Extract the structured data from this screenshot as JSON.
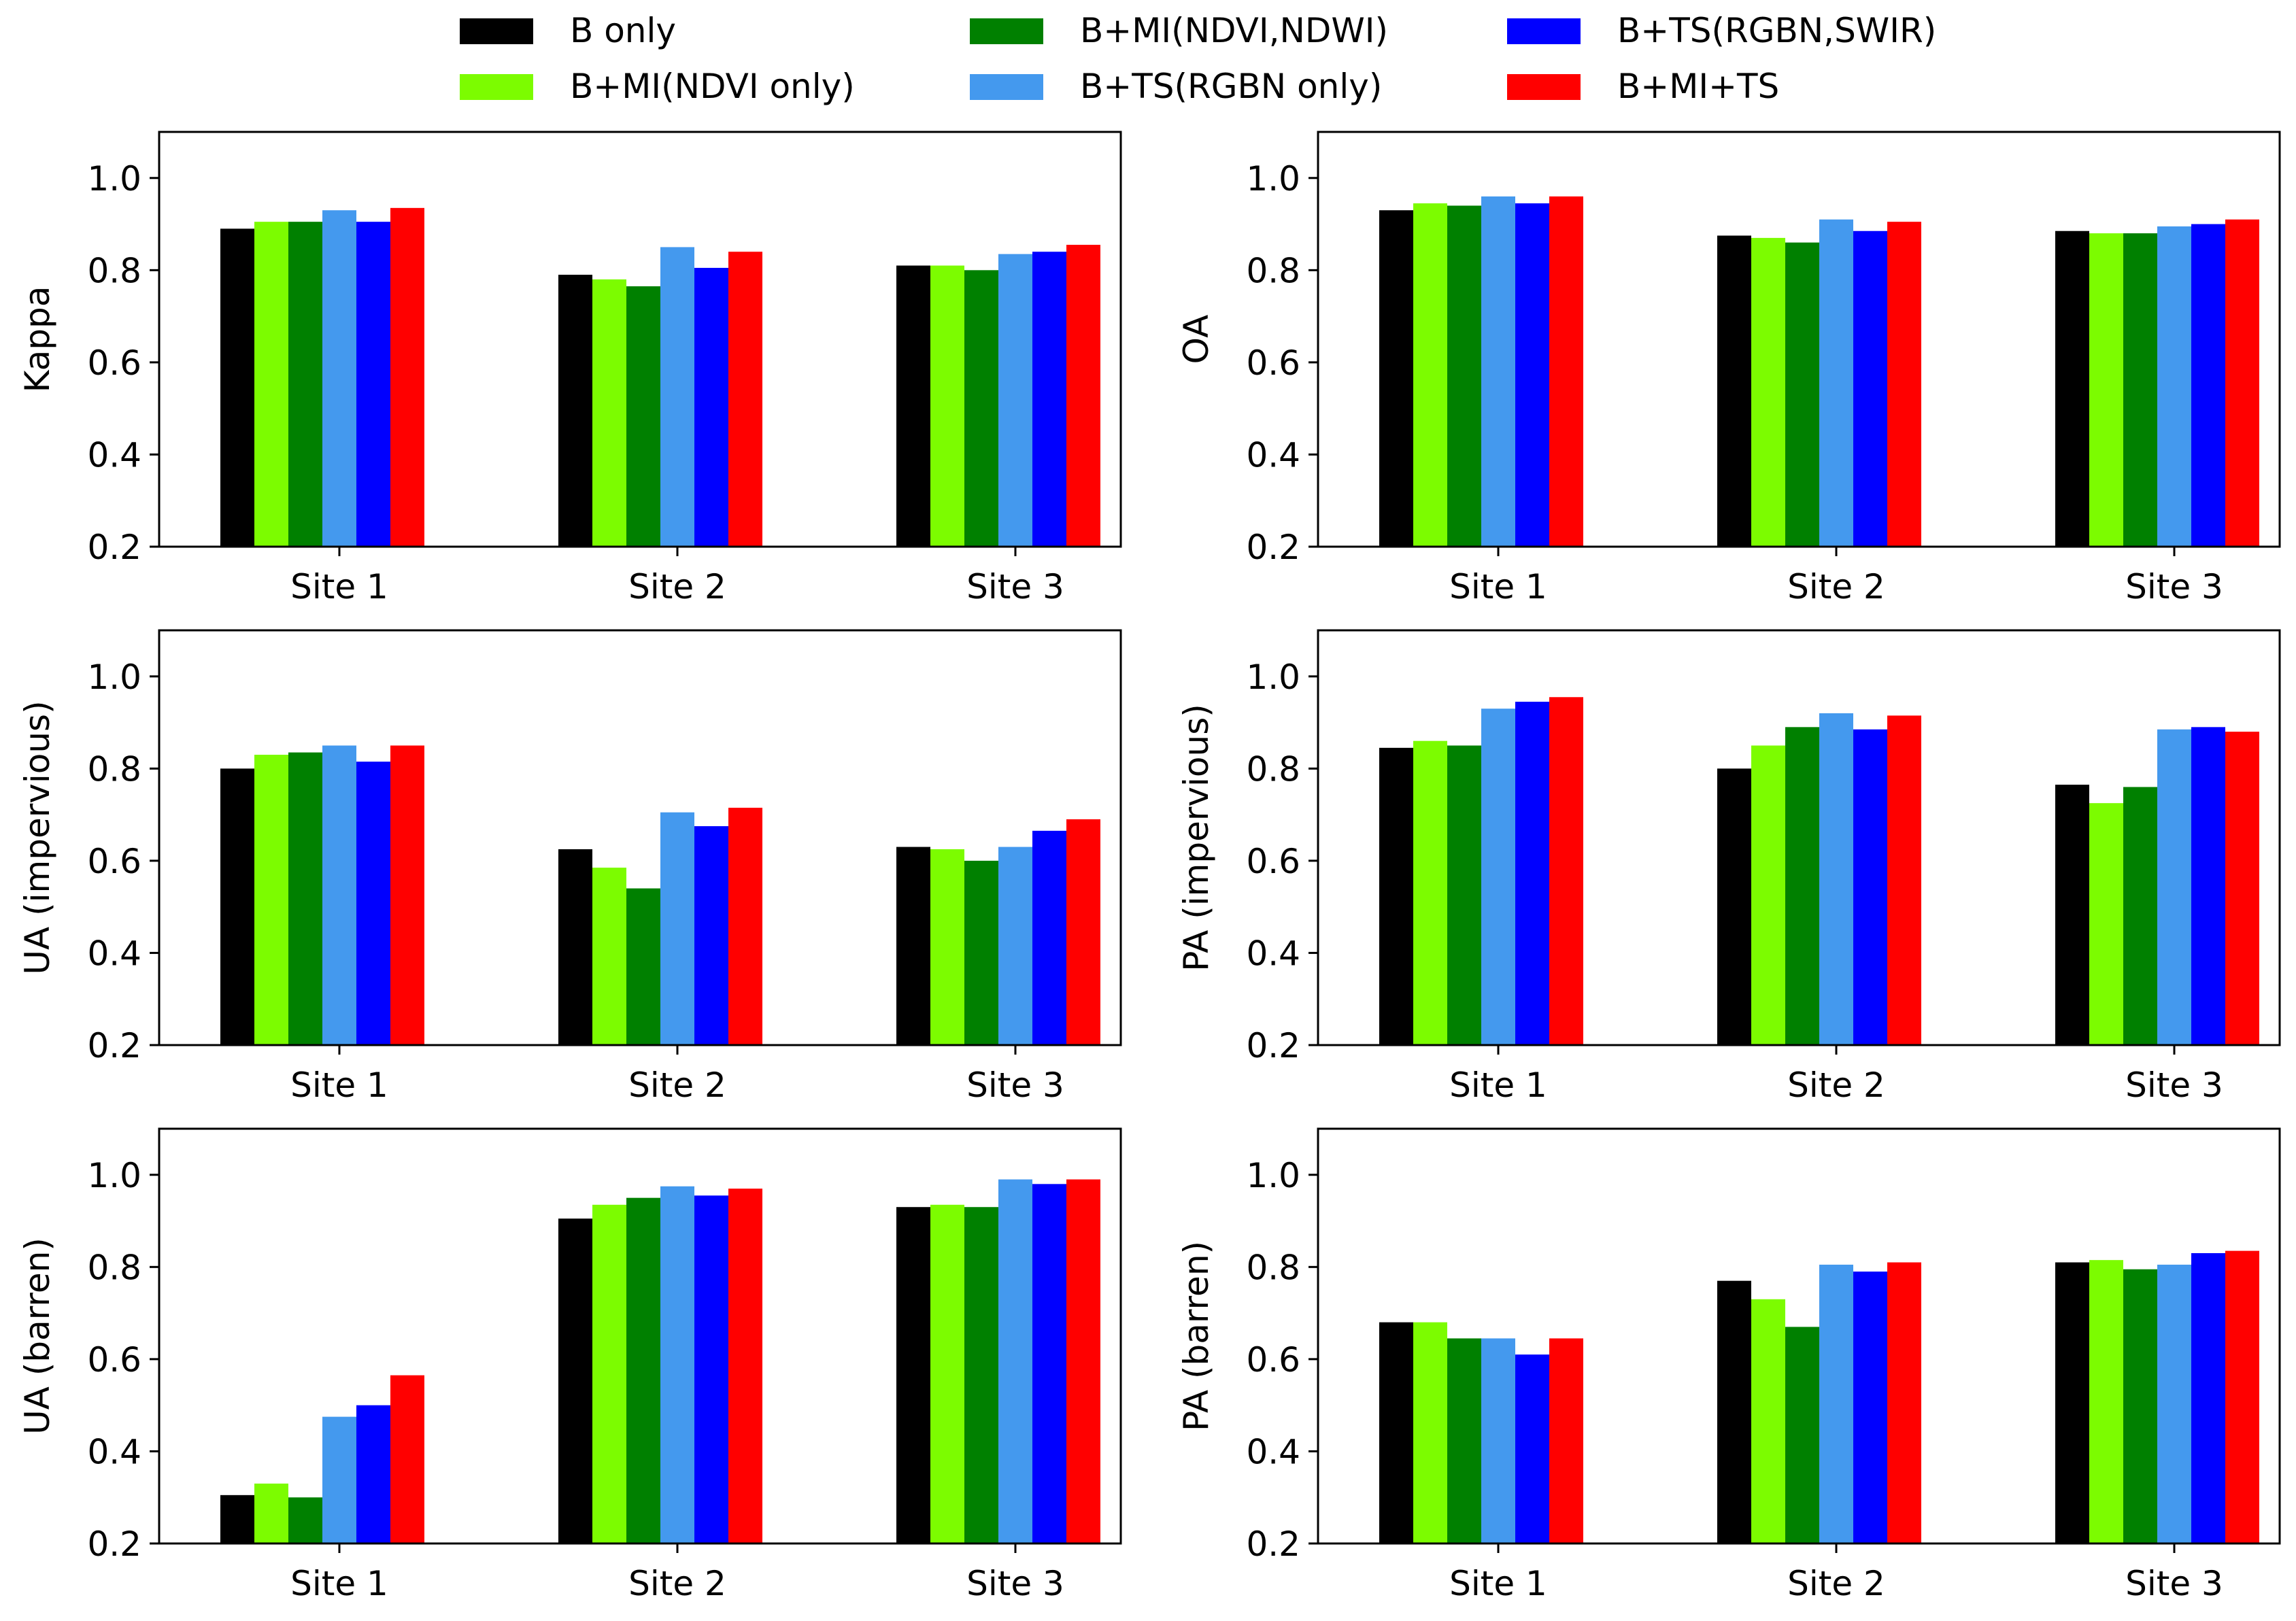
{
  "legend": {
    "placement": "top-center",
    "entries": [
      {
        "label": "B only",
        "color": "#000000"
      },
      {
        "label": "B+MI(NDVI only)",
        "color": "#7CFC00"
      },
      {
        "label": "B+MI(NDVI,NDWI)",
        "color": "#008000"
      },
      {
        "label": "B+TS(RGBN only)",
        "color": "#4499EE"
      },
      {
        "label": "B+TS(RGBN,SWIR)",
        "color": "#0000FF"
      },
      {
        "label": "B+MI+TS",
        "color": "#FF0000"
      }
    ]
  },
  "chart_data": [
    {
      "type": "bar",
      "ylabel": "Kappa",
      "categories": [
        "Site 1",
        "Site 2",
        "Site 3"
      ],
      "ylim": [
        0.2,
        1.1
      ],
      "yticks": [
        "0.2",
        "0.4",
        "0.6",
        "0.8",
        "1.0"
      ],
      "series": [
        {
          "name": "B only",
          "values": [
            0.89,
            0.79,
            0.81
          ]
        },
        {
          "name": "B+MI(NDVI only)",
          "values": [
            0.905,
            0.78,
            0.81
          ]
        },
        {
          "name": "B+MI(NDVI,NDWI)",
          "values": [
            0.905,
            0.765,
            0.8
          ]
        },
        {
          "name": "B+TS(RGBN only)",
          "values": [
            0.93,
            0.85,
            0.835
          ]
        },
        {
          "name": "B+TS(RGBN,SWIR)",
          "values": [
            0.905,
            0.805,
            0.84
          ]
        },
        {
          "name": "B+MI+TS",
          "values": [
            0.935,
            0.84,
            0.855
          ]
        }
      ]
    },
    {
      "type": "bar",
      "ylabel": "OA",
      "categories": [
        "Site 1",
        "Site 2",
        "Site 3"
      ],
      "ylim": [
        0.2,
        1.1
      ],
      "yticks": [
        "0.2",
        "0.4",
        "0.6",
        "0.8",
        "1.0"
      ],
      "series": [
        {
          "name": "B only",
          "values": [
            0.93,
            0.875,
            0.885
          ]
        },
        {
          "name": "B+MI(NDVI only)",
          "values": [
            0.945,
            0.87,
            0.88
          ]
        },
        {
          "name": "B+MI(NDVI,NDWI)",
          "values": [
            0.94,
            0.86,
            0.88
          ]
        },
        {
          "name": "B+TS(RGBN only)",
          "values": [
            0.96,
            0.91,
            0.895
          ]
        },
        {
          "name": "B+TS(RGBN,SWIR)",
          "values": [
            0.945,
            0.885,
            0.9
          ]
        },
        {
          "name": "B+MI+TS",
          "values": [
            0.96,
            0.905,
            0.91
          ]
        }
      ]
    },
    {
      "type": "bar",
      "ylabel": "UA (impervious)",
      "categories": [
        "Site 1",
        "Site 2",
        "Site 3"
      ],
      "ylim": [
        0.2,
        1.1
      ],
      "yticks": [
        "0.2",
        "0.4",
        "0.6",
        "0.8",
        "1.0"
      ],
      "series": [
        {
          "name": "B only",
          "values": [
            0.8,
            0.625,
            0.63
          ]
        },
        {
          "name": "B+MI(NDVI only)",
          "values": [
            0.83,
            0.585,
            0.625
          ]
        },
        {
          "name": "B+MI(NDVI,NDWI)",
          "values": [
            0.835,
            0.54,
            0.6
          ]
        },
        {
          "name": "B+TS(RGBN only)",
          "values": [
            0.85,
            0.705,
            0.63
          ]
        },
        {
          "name": "B+TS(RGBN,SWIR)",
          "values": [
            0.815,
            0.675,
            0.665
          ]
        },
        {
          "name": "B+MI+TS",
          "values": [
            0.85,
            0.715,
            0.69
          ]
        }
      ]
    },
    {
      "type": "bar",
      "ylabel": "PA (impervious)",
      "categories": [
        "Site 1",
        "Site 2",
        "Site 3"
      ],
      "ylim": [
        0.2,
        1.1
      ],
      "yticks": [
        "0.2",
        "0.4",
        "0.6",
        "0.8",
        "1.0"
      ],
      "series": [
        {
          "name": "B only",
          "values": [
            0.845,
            0.8,
            0.765
          ]
        },
        {
          "name": "B+MI(NDVI only)",
          "values": [
            0.86,
            0.85,
            0.725
          ]
        },
        {
          "name": "B+MI(NDVI,NDWI)",
          "values": [
            0.85,
            0.89,
            0.76
          ]
        },
        {
          "name": "B+TS(RGBN only)",
          "values": [
            0.93,
            0.92,
            0.885
          ]
        },
        {
          "name": "B+TS(RGBN,SWIR)",
          "values": [
            0.945,
            0.885,
            0.89
          ]
        },
        {
          "name": "B+MI+TS",
          "values": [
            0.955,
            0.915,
            0.88
          ]
        }
      ]
    },
    {
      "type": "bar",
      "ylabel": "UA (barren)",
      "categories": [
        "Site 1",
        "Site 2",
        "Site 3"
      ],
      "ylim": [
        0.2,
        1.1
      ],
      "yticks": [
        "0.2",
        "0.4",
        "0.6",
        "0.8",
        "1.0"
      ],
      "series": [
        {
          "name": "B only",
          "values": [
            0.305,
            0.905,
            0.93
          ]
        },
        {
          "name": "B+MI(NDVI only)",
          "values": [
            0.33,
            0.935,
            0.935
          ]
        },
        {
          "name": "B+MI(NDVI,NDWI)",
          "values": [
            0.3,
            0.95,
            0.93
          ]
        },
        {
          "name": "B+TS(RGBN only)",
          "values": [
            0.475,
            0.975,
            0.99
          ]
        },
        {
          "name": "B+TS(RGBN,SWIR)",
          "values": [
            0.5,
            0.955,
            0.98
          ]
        },
        {
          "name": "B+MI+TS",
          "values": [
            0.565,
            0.97,
            0.99
          ]
        }
      ]
    },
    {
      "type": "bar",
      "ylabel": "PA (barren)",
      "categories": [
        "Site 1",
        "Site 2",
        "Site 3"
      ],
      "ylim": [
        0.2,
        1.1
      ],
      "yticks": [
        "0.2",
        "0.4",
        "0.6",
        "0.8",
        "1.0"
      ],
      "series": [
        {
          "name": "B only",
          "values": [
            0.68,
            0.77,
            0.81
          ]
        },
        {
          "name": "B+MI(NDVI only)",
          "values": [
            0.68,
            0.73,
            0.815
          ]
        },
        {
          "name": "B+MI(NDVI,NDWI)",
          "values": [
            0.645,
            0.67,
            0.795
          ]
        },
        {
          "name": "B+TS(RGBN only)",
          "values": [
            0.645,
            0.805,
            0.805
          ]
        },
        {
          "name": "B+TS(RGBN,SWIR)",
          "values": [
            0.61,
            0.79,
            0.83
          ]
        },
        {
          "name": "B+MI+TS",
          "values": [
            0.645,
            0.81,
            0.835
          ]
        }
      ]
    }
  ]
}
